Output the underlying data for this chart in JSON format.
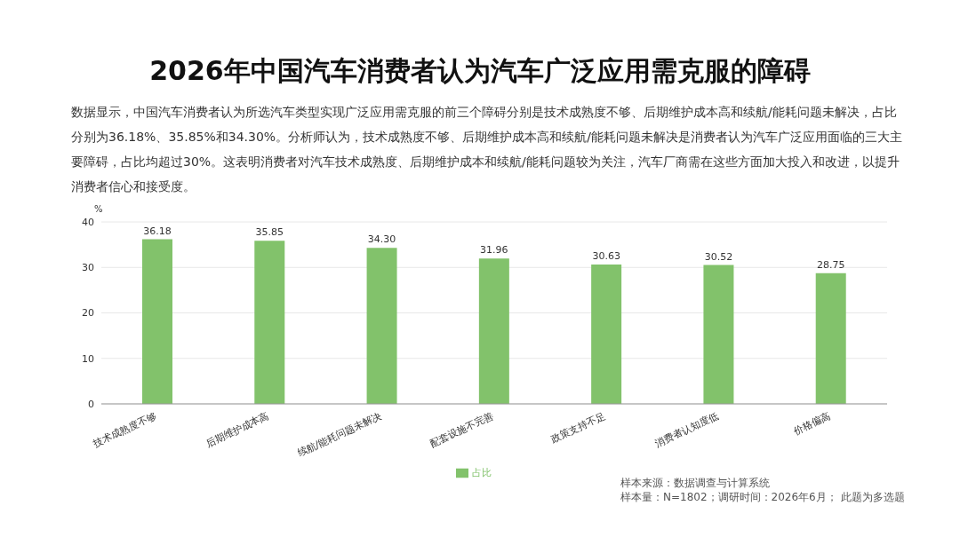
{
  "chart_data": {
    "type": "bar",
    "title": "2026年中国汽车消费者认为汽车广泛应用需克服的障碍",
    "subtitle": "数据显示，中国汽车消费者认为所选汽车类型实现广泛应用需克服的前三个障碍分别是技术成熟度不够、后期维护成本高和续航/能耗问题未解决，占比分别为36.18%、35.85%和34.30%。分析师认为，技术成熟度不够、后期维护成本高和续航/能耗问题未解决是消费者认为汽车广泛应用面临的三大主要障碍，占比均超过30%。这表明消费者对汽车技术成熟度、后期维护成本和续航/能耗问题较为关注，汽车厂商需在这些方面加大投入和改进，以提升消费者信心和接受度。",
    "ylabel": "%",
    "categories": [
      "技术成熟度不够",
      "后期维护成本高",
      "续航/能耗问题未解决",
      "配套设施不完善",
      "政策支持不足",
      "消费者认知度低",
      "价格偏高"
    ],
    "series": [
      {
        "name": "占比",
        "color": "#82c26b",
        "values": [
          36.18,
          35.85,
          34.3,
          31.96,
          30.63,
          30.52,
          28.75
        ],
        "value_labels": [
          "36.18",
          "35.85",
          "34.30",
          "31.96",
          "30.63",
          "30.52",
          "28.75"
        ]
      }
    ],
    "ylim": [
      0,
      40
    ],
    "yticks": [
      0,
      10,
      20,
      30,
      40
    ],
    "grid": "y",
    "legend": "bottom",
    "annotations": [
      "样本来源：数据调查与计算系统",
      "样本量：N=1802；调研时间：2026年6月； 此题为多选题"
    ]
  }
}
